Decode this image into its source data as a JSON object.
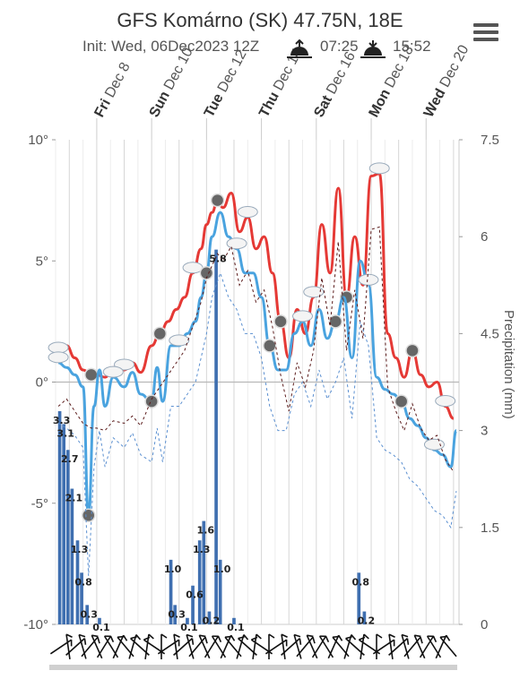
{
  "header": {
    "title": "GFS Komárno (SK) 47.75N, 18E",
    "init": "Init: Wed, 06Dec2023 12Z",
    "sunrise": "07:25",
    "sunset": "15:52"
  },
  "icons": {
    "menu": "hamburger-menu-icon",
    "sunrise": "sunrise-icon",
    "sunset": "sunset-icon"
  },
  "colors": {
    "max_temp": "#e53935",
    "min_temp": "#4aa3df",
    "precip": "#3f6fb0",
    "dewpoint": "#5a1a1a"
  },
  "chart_data": {
    "type": "line",
    "days": [
      {
        "weekday": "Fri",
        "date": "Dec 8"
      },
      {
        "weekday": "Sun",
        "date": "Dec 10"
      },
      {
        "weekday": "Tue",
        "date": "Dec 12"
      },
      {
        "weekday": "Thu",
        "date": "Dec 14"
      },
      {
        "weekday": "Sat",
        "date": "Dec 16"
      },
      {
        "weekday": "Mon",
        "date": "Dec 18"
      },
      {
        "weekday": "Wed",
        "date": "Dec 20"
      }
    ],
    "x_range_days": [
      6.5,
      21.2
    ],
    "temp_axis": {
      "ylim": [
        -10,
        10
      ],
      "ticks": [
        "10°",
        "5°",
        "0°",
        "-5°",
        "-10°"
      ]
    },
    "precip_axis": {
      "ylim": [
        0,
        7.5
      ],
      "ticks": [
        "7.5",
        "6",
        "4.5",
        "3",
        "1.5",
        "0"
      ],
      "label": "Precipitation (mm)"
    },
    "series": [
      {
        "name": "max temperature",
        "color": "#e53935",
        "x": [
          6.6,
          6.9,
          7.2,
          7.5,
          7.8,
          8.0,
          8.3,
          8.6,
          9.0,
          9.3,
          9.6,
          10.0,
          10.3,
          10.6,
          10.9,
          11.2,
          11.5,
          11.8,
          12.0,
          12.2,
          12.4,
          12.6,
          12.9,
          13.2,
          13.5,
          13.8,
          14.1,
          14.4,
          14.7,
          15.0,
          15.3,
          15.6,
          15.9,
          16.2,
          16.5,
          16.8,
          17.1,
          17.4,
          17.7,
          18.0,
          18.3,
          18.6,
          18.9,
          19.2,
          19.5,
          19.8,
          20.1,
          20.4,
          20.7,
          21.0
        ],
        "y": [
          1.2,
          1.5,
          1.0,
          0.5,
          0.3,
          0.3,
          0.2,
          0.6,
          0.5,
          0.8,
          0.4,
          1.5,
          2.0,
          2.5,
          3.0,
          3.5,
          4.5,
          5.5,
          6.5,
          7.0,
          7.5,
          7.2,
          7.8,
          6.2,
          6.8,
          5.5,
          6.0,
          4.5,
          2.5,
          1.0,
          3.0,
          2.0,
          3.5,
          6.5,
          4.5,
          8.0,
          3.5,
          6.0,
          4.0,
          8.5,
          8.6,
          2.0,
          1.0,
          0.2,
          1.3,
          0.3,
          -0.2,
          0.0,
          -1.0,
          -1.5
        ]
      },
      {
        "name": "min temperature",
        "color": "#4aa3df",
        "x": [
          6.6,
          6.9,
          7.2,
          7.5,
          7.7,
          7.9,
          8.1,
          8.3,
          8.6,
          9.0,
          9.3,
          9.6,
          10.0,
          10.2,
          10.4,
          10.7,
          11.0,
          11.3,
          11.6,
          11.8,
          12.0,
          12.2,
          12.5,
          12.8,
          13.1,
          13.4,
          13.7,
          14.0,
          14.3,
          14.6,
          14.9,
          15.2,
          15.5,
          15.8,
          16.1,
          16.4,
          16.7,
          17.0,
          17.3,
          17.6,
          17.9,
          18.2,
          18.5,
          18.8,
          19.1,
          19.4,
          19.7,
          20.0,
          20.3,
          20.6,
          20.9,
          21.1
        ],
        "y": [
          0.8,
          0.6,
          0.3,
          -0.2,
          -5.5,
          -1.0,
          0.5,
          -1.0,
          0.2,
          -0.2,
          0.4,
          -0.5,
          -0.8,
          0.6,
          -0.8,
          1.5,
          1.5,
          2.0,
          2.5,
          3.5,
          4.5,
          6.0,
          7.0,
          6.0,
          5.5,
          4.5,
          4.5,
          3.5,
          1.5,
          0.5,
          0.5,
          2.0,
          2.5,
          1.5,
          3.0,
          1.8,
          2.5,
          3.5,
          1.0,
          5.0,
          4.0,
          0.2,
          -0.3,
          -0.5,
          -0.8,
          -1.5,
          -1.8,
          -2.3,
          -2.8,
          -3.0,
          -3.5,
          -2.0
        ]
      }
    ],
    "precip_bars": [
      {
        "x": 6.65,
        "value": 3.3,
        "label": "3.3"
      },
      {
        "x": 6.8,
        "value": 3.1,
        "label": "3.1"
      },
      {
        "x": 6.95,
        "value": 2.7,
        "label": "2.7"
      },
      {
        "x": 7.1,
        "value": 2.1,
        "label": "2.1"
      },
      {
        "x": 7.3,
        "value": 1.3,
        "label": "1.3"
      },
      {
        "x": 7.45,
        "value": 0.8,
        "label": "0.8"
      },
      {
        "x": 7.65,
        "value": 0.3,
        "label": "0.3"
      },
      {
        "x": 8.1,
        "value": 0.1,
        "label": "0.1"
      },
      {
        "x": 10.7,
        "value": 1.0,
        "label": "1.0"
      },
      {
        "x": 10.85,
        "value": 0.3,
        "label": "0.3"
      },
      {
        "x": 11.3,
        "value": 0.1,
        "label": "0.1"
      },
      {
        "x": 11.5,
        "value": 0.6,
        "label": "0.6"
      },
      {
        "x": 11.75,
        "value": 1.3,
        "label": "1.3"
      },
      {
        "x": 11.9,
        "value": 1.6,
        "label": "1.6"
      },
      {
        "x": 12.1,
        "value": 0.2,
        "label": "0.2"
      },
      {
        "x": 12.35,
        "value": 5.8,
        "label": "5.8"
      },
      {
        "x": 12.5,
        "value": 1.0,
        "label": "1.0"
      },
      {
        "x": 13.0,
        "value": 0.1,
        "label": "0.1"
      },
      {
        "x": 17.55,
        "value": 0.8,
        "label": "0.8"
      },
      {
        "x": 17.75,
        "value": 0.2,
        "label": "0.2"
      }
    ],
    "grid": true
  }
}
